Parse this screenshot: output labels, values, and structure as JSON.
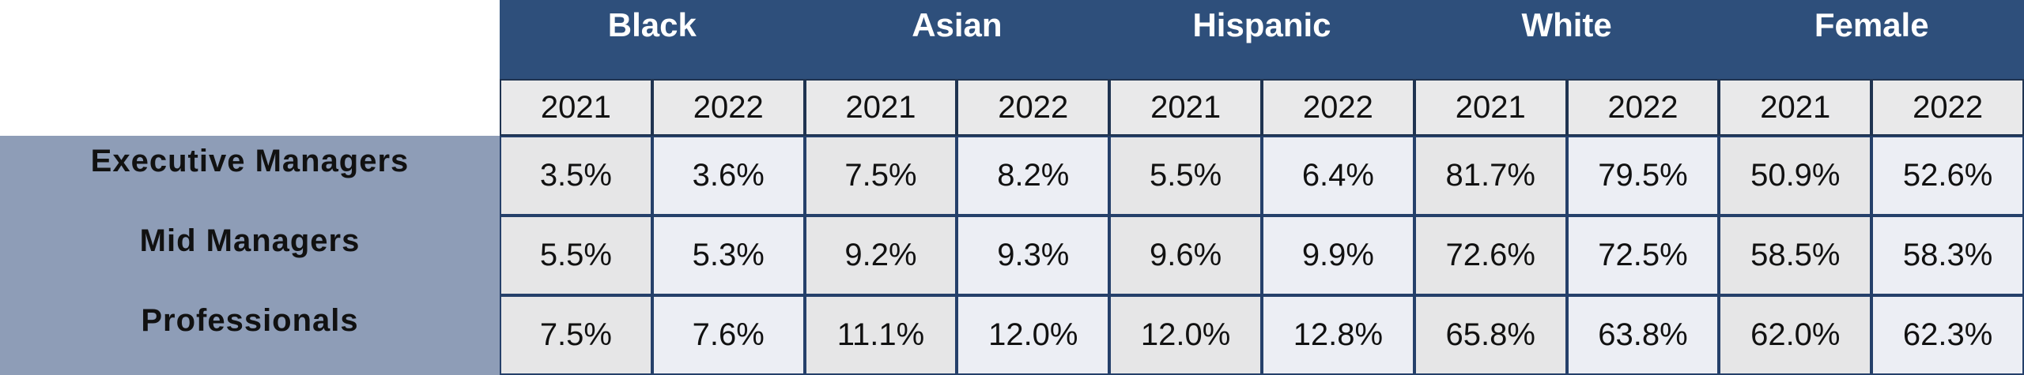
{
  "table": {
    "groups": [
      "Black",
      "Asian",
      "Hispanic",
      "White",
      "Female"
    ],
    "years": [
      "2021",
      "2022",
      "2021",
      "2022",
      "2021",
      "2022",
      "2021",
      "2022",
      "2021",
      "2022"
    ],
    "rows": [
      {
        "label": "Executive Managers",
        "cells": [
          "3.5%",
          "3.6%",
          "7.5%",
          "8.2%",
          "5.5%",
          "6.4%",
          "81.7%",
          "79.5%",
          "50.9%",
          "52.6%"
        ]
      },
      {
        "label": "Mid Managers",
        "cells": [
          "5.5%",
          "5.3%",
          "9.2%",
          "9.3%",
          "9.6%",
          "9.9%",
          "72.6%",
          "72.5%",
          "58.5%",
          "58.3%"
        ]
      },
      {
        "label": "Professionals",
        "cells": [
          "7.5%",
          "7.6%",
          "11.1%",
          "12.0%",
          "12.0%",
          "12.8%",
          "65.8%",
          "63.8%",
          "62.0%",
          "62.3%"
        ]
      }
    ]
  }
}
